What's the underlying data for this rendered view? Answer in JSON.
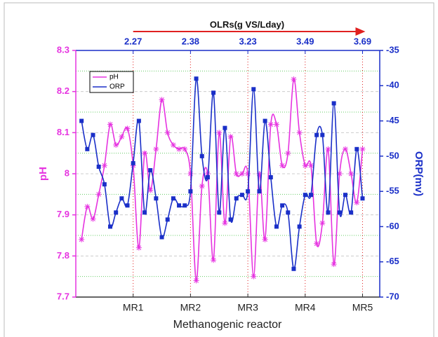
{
  "chart_data": {
    "type": "line",
    "top_label": "OLRs(g VS/Lday)",
    "xlabel": "Methanogenic reactor",
    "ylabel": "pH",
    "y2label": "ORP(mv)",
    "x": [
      0.1,
      0.2,
      0.3,
      0.4,
      0.5,
      0.6,
      0.7,
      0.8,
      0.9,
      1.0,
      1.1,
      1.2,
      1.3,
      1.4,
      1.5,
      1.6,
      1.7,
      1.8,
      1.9,
      2.0,
      2.1,
      2.2,
      2.3,
      2.4,
      2.5,
      2.6,
      2.7,
      2.8,
      2.9,
      3.0,
      3.1,
      3.2,
      3.3,
      3.4,
      3.5,
      3.6,
      3.7,
      3.8,
      3.9,
      4.0,
      4.1,
      4.2,
      4.3,
      4.4,
      4.5,
      4.6,
      4.7,
      4.8,
      4.9,
      5.0
    ],
    "xlim": [
      0,
      5.3
    ],
    "xticks": [
      {
        "value": 1,
        "label": "MR1"
      },
      {
        "value": 2,
        "label": "MR2"
      },
      {
        "value": 3,
        "label": "MR3"
      },
      {
        "value": 4,
        "label": "MR4"
      },
      {
        "value": 5,
        "label": "MR5"
      }
    ],
    "top_ticks": [
      {
        "value": 1,
        "label": "2.27"
      },
      {
        "value": 2,
        "label": "2.38"
      },
      {
        "value": 3,
        "label": "3.23"
      },
      {
        "value": 4,
        "label": "3.49"
      },
      {
        "value": 5,
        "label": "3.69"
      }
    ],
    "ylim": [
      7.7,
      8.3
    ],
    "yticks": [
      7.7,
      7.8,
      7.9,
      8.0,
      8.1,
      8.2,
      8.3
    ],
    "y2lim": [
      -70,
      -35
    ],
    "y2ticks": [
      -70,
      -65,
      -60,
      -55,
      -50,
      -45,
      -40,
      -35
    ],
    "legend": "upper left",
    "series": [
      {
        "name": "pH",
        "color": "#e633e0",
        "values": [
          7.84,
          7.92,
          7.89,
          7.95,
          8.02,
          8.12,
          8.07,
          8.09,
          8.11,
          8.02,
          7.82,
          8.05,
          7.96,
          8.06,
          8.18,
          8.1,
          8.07,
          8.06,
          8.06,
          8.0,
          7.74,
          7.97,
          8.0,
          7.79,
          8.1,
          7.88,
          8.09,
          8.0,
          8.0,
          8.0,
          7.75,
          8.0,
          7.84,
          8.12,
          8.12,
          8.02,
          8.05,
          8.23,
          8.1,
          8.02,
          8.02,
          7.83,
          7.88,
          8.06,
          7.78,
          8.0,
          8.06,
          8.0,
          7.93,
          8.06
        ]
      },
      {
        "name": "ORP",
        "color": "#1a2fc8",
        "axis": "y2",
        "values": [
          -45,
          -49,
          -47,
          -51.5,
          -54,
          -60,
          -58,
          -56,
          -57,
          -51,
          -45,
          -58,
          -52,
          -56,
          -61.5,
          -59,
          -56,
          -57,
          -57,
          -55,
          -39,
          -50,
          -53,
          -41,
          -58,
          -46,
          -59,
          -56,
          -55.5,
          -55,
          -40.5,
          -55,
          -45,
          -53,
          -60,
          -57,
          -58,
          -66,
          -60,
          -55.5,
          -55.5,
          -47,
          -47,
          -58,
          -42.5,
          -58,
          -55.5,
          -58,
          -49,
          -56
        ]
      }
    ]
  }
}
